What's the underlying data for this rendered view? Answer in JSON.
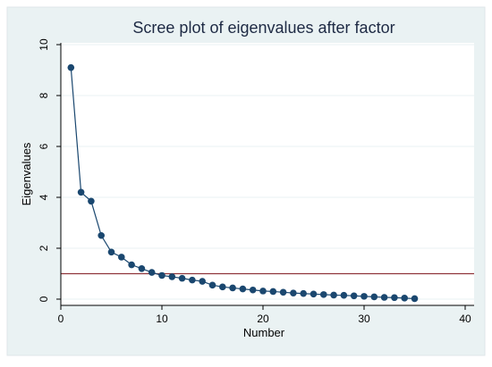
{
  "chart_data": {
    "type": "line",
    "title": "Scree plot of eigenvalues after factor",
    "xlabel": "Number",
    "ylabel": "Eigenvalues",
    "xlim": [
      0,
      40
    ],
    "ylim": [
      0,
      10
    ],
    "xticks": [
      "0",
      "10",
      "20",
      "30",
      "40"
    ],
    "yticks": [
      "0",
      "2",
      "4",
      "6",
      "8",
      "10"
    ],
    "grid": true,
    "reference_line": {
      "axis": "y",
      "value": 1,
      "color": "#90353b"
    },
    "series": [
      {
        "color": "#1a476f",
        "marker": "circle",
        "x": [
          1,
          2,
          3,
          4,
          5,
          6,
          7,
          8,
          9,
          10,
          11,
          12,
          13,
          14,
          15,
          16,
          17,
          18,
          19,
          20,
          21,
          22,
          23,
          24,
          25,
          26,
          27,
          28,
          29,
          30,
          31,
          32,
          33,
          34,
          35
        ],
        "values": [
          9.1,
          4.2,
          3.85,
          2.5,
          1.85,
          1.65,
          1.35,
          1.2,
          1.05,
          0.93,
          0.88,
          0.82,
          0.75,
          0.7,
          0.55,
          0.48,
          0.44,
          0.4,
          0.36,
          0.32,
          0.3,
          0.27,
          0.24,
          0.22,
          0.2,
          0.18,
          0.16,
          0.15,
          0.13,
          0.11,
          0.09,
          0.07,
          0.06,
          0.04,
          0.02
        ]
      }
    ]
  }
}
